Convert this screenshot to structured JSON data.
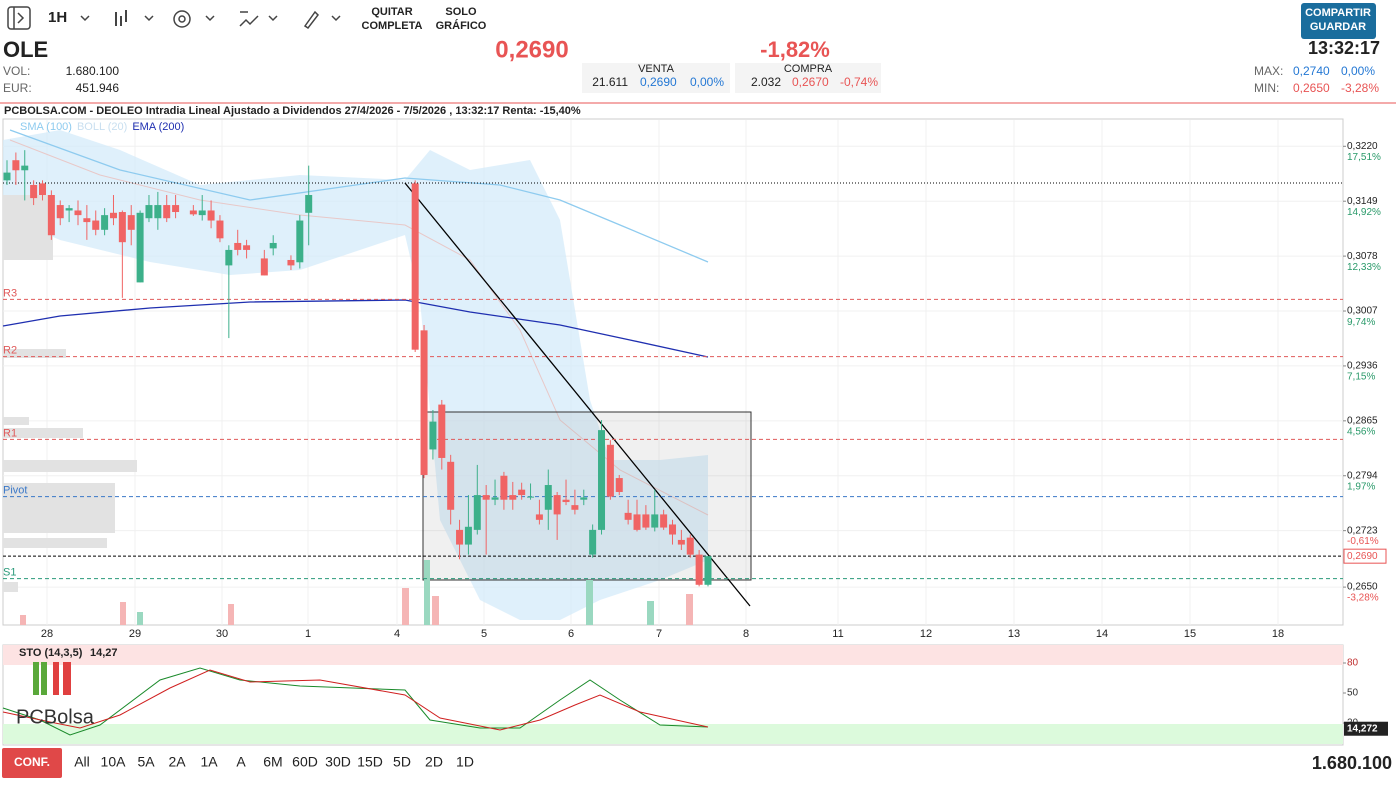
{
  "toolbar": {
    "interval": "1H",
    "remove_full": [
      "QUITAR",
      "COMPLETA"
    ],
    "chart_only": [
      "SOLO",
      "GRÁFICO"
    ],
    "share_save": [
      "COMPARTIR",
      "GUARDAR"
    ]
  },
  "quote": {
    "symbol": "OLE",
    "price": "0,2690",
    "change": "-1,82%",
    "time": "13:32:17",
    "vol_label": "VOL:",
    "vol": "1.680.100",
    "eur_label": "EUR:",
    "eur": "451.946",
    "sell": {
      "label": "VENTA",
      "qty": "21.611",
      "price": "0,2690",
      "change": "0,00%"
    },
    "buy": {
      "label": "COMPRA",
      "qty": "2.032",
      "price": "0,2670",
      "change": "-0,74%"
    },
    "max_label": "MAX:",
    "max": "0,2740",
    "max_change": "0,00%",
    "min_label": "MIN:",
    "min": "0,2650",
    "min_change": "-3,28%"
  },
  "chart_data": [
    {
      "type": "candlestick",
      "title": "PCBOLSA.COM - DEOLEO Intradia Lineal Ajustado a Dividendos 27/4/2026 - 7/5/2026 , 13:32:17 Renta: -15,40%",
      "indicators": [
        {
          "name": "SMA (100)",
          "color": "#8ecbef"
        },
        {
          "name": "BOLL (20)",
          "color": "#c8dff0"
        },
        {
          "name": "EMA (200)",
          "color": "#1f2fb0"
        }
      ],
      "x_tick_labels": [
        "28",
        "29",
        "30",
        "1",
        "4",
        "5",
        "6",
        "7",
        "8",
        "11",
        "12",
        "13",
        "14",
        "15",
        "18"
      ],
      "open": [
        0.3176,
        0.3202,
        0.3189,
        0.317,
        0.3172,
        0.3157,
        0.3144,
        0.3137,
        0.3137,
        0.3127,
        0.3124,
        0.3112,
        0.3134,
        0.3135,
        0.3131,
        0.3044,
        0.3127,
        0.3127,
        0.3144,
        0.3144,
        null,
        0.3137,
        0.3131,
        0.3137,
        0.3124,
        0.3066,
        0.3095,
        0.3092,
        null,
        0.3075,
        0.3088,
        null,
        0.3073,
        0.307,
        0.3134,
        null,
        null,
        null,
        null,
        null,
        null,
        null,
        null,
        null,
        null,
        null,
        0.3172,
        0.2982,
        0.2828,
        0.2886,
        0.2812,
        0.2724,
        0.2705,
        0.2724,
        0.2769,
        0.2763,
        0.2794,
        0.2769,
        0.2776,
        0.2767,
        0.2744,
        0.275,
        0.2769,
        0.2763,
        0.2756,
        0.2763,
        0.2692,
        0.2724,
        0.2834,
        0.2791,
        0.2746,
        0.2744,
        0.2744,
        0.2727,
        0.2744,
        0.2731,
        0.2711,
        0.2714,
        0.2692,
        0.2653
      ],
      "high": [
        0.3202,
        0.3212,
        0.3215,
        0.3176,
        0.3176,
        0.3163,
        0.315,
        0.3144,
        0.315,
        0.3144,
        0.3137,
        0.314,
        0.3157,
        0.3137,
        0.3144,
        0.3137,
        0.3157,
        0.3161,
        0.3157,
        0.3157,
        null,
        0.3144,
        0.3157,
        0.315,
        0.3131,
        0.3092,
        0.3112,
        0.3099,
        null,
        0.3086,
        0.3105,
        null,
        0.3079,
        0.3131,
        0.3195,
        null,
        null,
        null,
        null,
        null,
        null,
        null,
        null,
        null,
        null,
        null,
        0.3176,
        0.2989,
        0.2879,
        0.2892,
        0.2821,
        0.2737,
        0.2769,
        0.2808,
        0.2782,
        0.2789,
        0.2799,
        0.2786,
        0.2785,
        0.2784,
        0.2763,
        0.2802,
        0.2773,
        0.2789,
        0.2776,
        0.2776,
        0.2731,
        0.2866,
        0.284,
        0.2795,
        0.2763,
        0.2763,
        0.2756,
        0.2776,
        0.275,
        0.2737,
        0.2724,
        0.2718,
        0.2698,
        0.269
      ],
      "low": [
        0.317,
        0.317,
        0.315,
        0.3144,
        0.315,
        0.3099,
        0.3118,
        0.3122,
        0.3118,
        0.3099,
        0.3105,
        0.3105,
        0.3118,
        0.3024,
        0.3092,
        0.3044,
        0.3122,
        0.3112,
        0.3122,
        0.3127,
        null,
        0.313,
        0.3124,
        0.3114,
        0.3096,
        0.2972,
        0.3079,
        0.3075,
        null,
        0.3053,
        0.3079,
        null,
        0.306,
        0.3062,
        0.3092,
        null,
        null,
        null,
        null,
        null,
        null,
        null,
        null,
        null,
        null,
        null,
        0.2954,
        0.2791,
        0.2815,
        0.2802,
        0.2731,
        0.2686,
        0.2692,
        0.2718,
        0.2692,
        0.2756,
        0.275,
        0.275,
        0.2763,
        0.2763,
        0.2731,
        0.2724,
        0.2711,
        0.2756,
        0.2744,
        0.2756,
        0.2688,
        0.2718,
        0.2763,
        0.2769,
        0.2731,
        0.2722,
        0.2724,
        0.2722,
        0.2724,
        0.2705,
        0.2698,
        0.2688,
        0.2651,
        0.2651
      ],
      "close": [
        0.3186,
        0.3189,
        0.3195,
        0.3153,
        0.3157,
        0.3105,
        0.3127,
        0.314,
        0.3131,
        0.3122,
        0.3112,
        0.3131,
        0.3127,
        0.3096,
        0.3112,
        0.3134,
        0.3144,
        0.3144,
        0.3127,
        0.3135,
        null,
        0.3132,
        0.3137,
        0.3124,
        0.3101,
        0.3086,
        0.3086,
        0.3086,
        null,
        0.3053,
        0.3095,
        null,
        0.3066,
        0.3124,
        0.3157,
        null,
        null,
        null,
        null,
        null,
        null,
        null,
        null,
        null,
        null,
        null,
        0.2957,
        0.2795,
        0.2864,
        0.2817,
        0.275,
        0.2705,
        0.2728,
        0.2769,
        0.2763,
        0.2766,
        0.2763,
        0.2763,
        0.2769,
        0.2767,
        0.2737,
        0.2782,
        0.2744,
        0.276,
        0.275,
        0.2766,
        0.2724,
        0.2853,
        0.2767,
        0.2773,
        0.2737,
        0.2724,
        0.2727,
        0.2744,
        0.2727,
        0.2718,
        0.2705,
        0.2692,
        0.2653,
        0.269
      ],
      "up_color": "#3cb08a",
      "down_color": "#f06464",
      "ylim": [
        0.2601,
        0.3254
      ],
      "yticks": [
        {
          "value": 0.322,
          "label": "0,3220"
        },
        {
          "value": 0.3149,
          "label": "0,3149"
        },
        {
          "value": 0.3078,
          "label": "0,3078"
        },
        {
          "value": 0.3007,
          "label": "0,3007"
        },
        {
          "value": 0.2936,
          "label": "0,2936"
        },
        {
          "value": 0.2865,
          "label": "0,2865"
        },
        {
          "value": 0.2794,
          "label": "0,2794"
        },
        {
          "value": 0.2723,
          "label": "0,2723"
        },
        {
          "value": 0.265,
          "label": "0,2650"
        }
      ],
      "y2lim": [
        -5.07,
        18.76
      ],
      "y2ticks": [
        {
          "value": 17.51,
          "label": "17,51%"
        },
        {
          "value": 14.92,
          "label": "14,92%"
        },
        {
          "value": 12.33,
          "label": "12,33%"
        },
        {
          "value": 9.74,
          "label": "9,74%"
        },
        {
          "value": 7.15,
          "label": "7,15%"
        },
        {
          "value": 4.56,
          "label": "4,56%"
        },
        {
          "value": 1.97,
          "label": "1,97%"
        },
        {
          "value": -0.61,
          "label": "-0,61%"
        },
        {
          "value": -3.28,
          "label": "-3,28%"
        }
      ],
      "grid": true,
      "levels": [
        {
          "name": "R3",
          "value": 0.3022,
          "color": "#e05a5a"
        },
        {
          "name": "R2",
          "value": 0.2948,
          "color": "#e05a5a"
        },
        {
          "name": "R1",
          "value": 0.2841,
          "color": "#e05a5a"
        },
        {
          "name": "Pivot",
          "value": 0.2767,
          "color": "#3a78c8"
        },
        {
          "name": "S1",
          "value": 0.2661,
          "color": "#2a9a7a"
        }
      ],
      "last_price": {
        "value": 0.269,
        "label": "0,2690"
      }
    },
    {
      "type": "stochastic",
      "title": "STO (14,3,5)",
      "value_label": "14,27",
      "ylim": [
        0,
        100
      ],
      "yticks": [
        80,
        50,
        20
      ],
      "last": {
        "value": 14.272,
        "label": "14,272"
      }
    }
  ],
  "footer": {
    "config": "CONF.",
    "ranges": [
      "All",
      "10A",
      "5A",
      "2A",
      "1A",
      "A",
      "6M",
      "60D",
      "30D",
      "15D",
      "5D",
      "2D",
      "1D"
    ],
    "volume": "1.680.100"
  }
}
